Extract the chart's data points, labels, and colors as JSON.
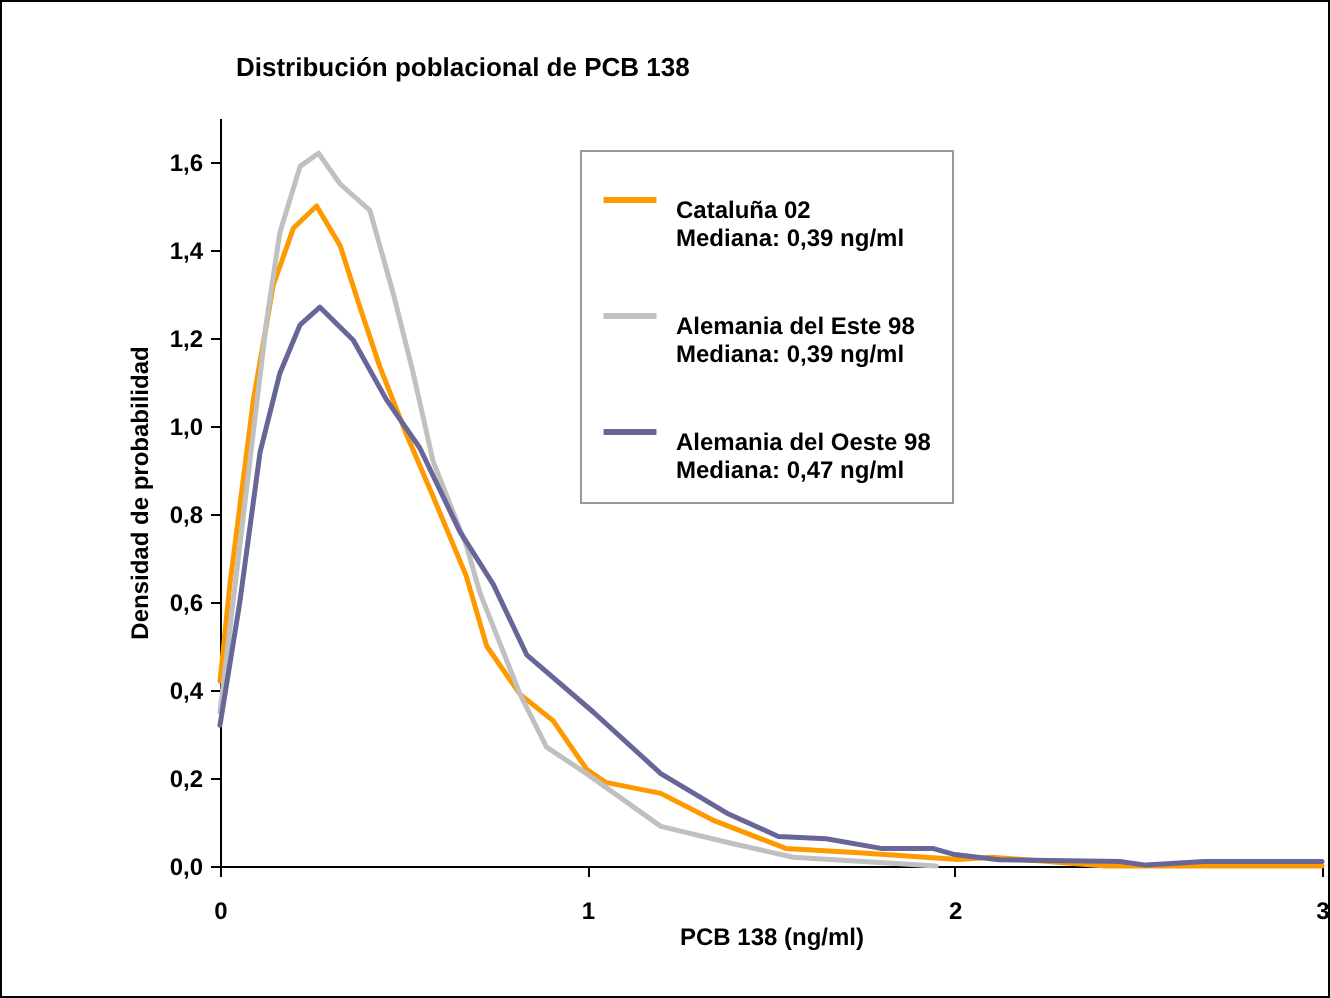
{
  "chart_data": {
    "type": "line",
    "title": "Distribución poblacional de PCB 138",
    "xlabel": "PCB 138 (ng/ml)",
    "ylabel": "Densidad de probabilidad",
    "xlim": [
      0,
      3
    ],
    "xticks": [
      0,
      1,
      2,
      3
    ],
    "ylim": [
      0,
      1.7
    ],
    "yticks": [
      {
        "value": 0,
        "label": "0,0"
      },
      {
        "value": 0.2,
        "label": "0,2"
      },
      {
        "value": 0.4,
        "label": "0,4"
      },
      {
        "value": 0.6,
        "label": "0,6"
      },
      {
        "value": 0.8,
        "label": "0,8"
      },
      {
        "value": 1,
        "label": "1,0"
      },
      {
        "value": 1.2,
        "label": "1,2"
      },
      {
        "value": 1.4,
        "label": "1,4"
      },
      {
        "value": 1.6,
        "label": "1,6"
      }
    ],
    "grid": false,
    "legend": "top right",
    "marker": "none",
    "line_style": "solid",
    "annotations": [
      "Mediana: 0,39 ng/ml",
      "Mediana: 0,39 ng/ml",
      "Mediana: 0,47 ng/ml"
    ],
    "series": [
      {
        "name": "Cataluña 02",
        "color": "#ff9900",
        "x": [
          0,
          0.027,
          0.091,
          0.145,
          0.2,
          0.263,
          0.327,
          0.381,
          0.435,
          0.508,
          0.58,
          0.67,
          0.726,
          0.817,
          0.907,
          0.998,
          1.05,
          1.2,
          1.34,
          1.54,
          1.74,
          2.01,
          2.1,
          2.41,
          3
        ],
        "values": [
          0.42,
          0.64,
          1.06,
          1.32,
          1.45,
          1.5,
          1.41,
          1.27,
          1.135,
          0.98,
          0.84,
          0.66,
          0.5,
          0.39,
          0.33,
          0.22,
          0.19,
          0.165,
          0.105,
          0.04,
          0.03,
          0.015,
          0.02,
          0,
          0
        ]
      },
      {
        "name": "Alemania del Este 98",
        "color": "#c0c0c0",
        "x": [
          0,
          0.127,
          0.163,
          0.218,
          0.268,
          0.327,
          0.408,
          0.472,
          0.526,
          0.58,
          0.67,
          0.708,
          0.817,
          0.889,
          0.998,
          1.2,
          1.4,
          1.56,
          1.83,
          1.95
        ],
        "values": [
          0.35,
          1.24,
          1.44,
          1.59,
          1.62,
          1.55,
          1.49,
          1.3,
          1.12,
          0.92,
          0.73,
          0.62,
          0.39,
          0.27,
          0.21,
          0.09,
          0.05,
          0.02,
          0.006,
          0
        ]
      },
      {
        "name": "Alemania del Oeste 98",
        "color": "#666699",
        "x": [
          0,
          0.054,
          0.109,
          0.163,
          0.218,
          0.272,
          0.363,
          0.453,
          0.544,
          0.653,
          0.744,
          0.835,
          1.016,
          1.2,
          1.38,
          1.52,
          1.65,
          1.8,
          1.94,
          2,
          2.12,
          2.45,
          2.52,
          2.68,
          3
        ],
        "values": [
          0.32,
          0.6,
          0.94,
          1.12,
          1.23,
          1.27,
          1.195,
          1.06,
          0.95,
          0.76,
          0.64,
          0.48,
          0.35,
          0.21,
          0.12,
          0.067,
          0.062,
          0.04,
          0.04,
          0.026,
          0.014,
          0.01,
          0.002,
          0.01,
          0.01
        ]
      }
    ]
  }
}
